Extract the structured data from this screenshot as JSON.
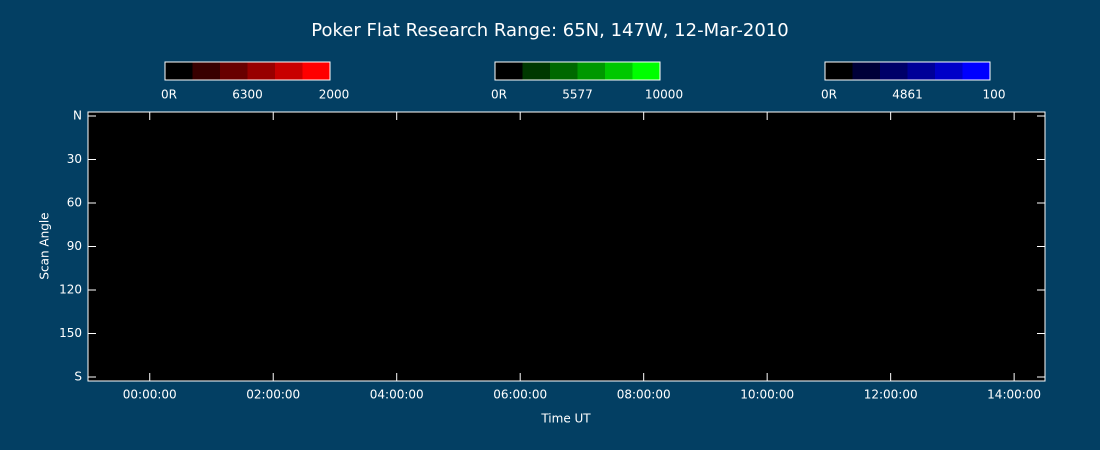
{
  "chart_data": {
    "type": "heatmap",
    "title": "Poker Flat Research Range: 65N, 147W, 12-Mar-2010",
    "x_label": "Time UT",
    "y_label": "Scan Angle",
    "xlim": [
      -1,
      14.5
    ],
    "xticks": [
      {
        "value": 0,
        "label": "00:00:00"
      },
      {
        "value": 2,
        "label": "02:00:00"
      },
      {
        "value": 4,
        "label": "04:00:00"
      },
      {
        "value": 6,
        "label": "06:00:00"
      },
      {
        "value": 8,
        "label": "08:00:00"
      },
      {
        "value": 10,
        "label": "10:00:00"
      },
      {
        "value": 12,
        "label": "12:00:00"
      },
      {
        "value": 14,
        "label": "14:00:00"
      }
    ],
    "ylim": [
      0,
      180
    ],
    "yticks": [
      {
        "value": 0,
        "label": "N"
      },
      30,
      60,
      90,
      120,
      150,
      {
        "value": 180,
        "label": "S"
      }
    ],
    "colorbars": [
      {
        "min_label": "0R",
        "label": "6300",
        "max": 2000,
        "colors": [
          "#000000",
          "#380000",
          "#680000",
          "#980000",
          "#c80000",
          "#ff0000"
        ]
      },
      {
        "min_label": "0R",
        "label": "5577",
        "max": 10000,
        "colors": [
          "#000000",
          "#003800",
          "#006800",
          "#009800",
          "#00c800",
          "#00ff00"
        ]
      },
      {
        "min_label": "0R",
        "label": "4861",
        "max": 100,
        "colors": [
          "#000000",
          "#000038",
          "#000068",
          "#000098",
          "#0000c8",
          "#0000ff"
        ]
      }
    ]
  }
}
